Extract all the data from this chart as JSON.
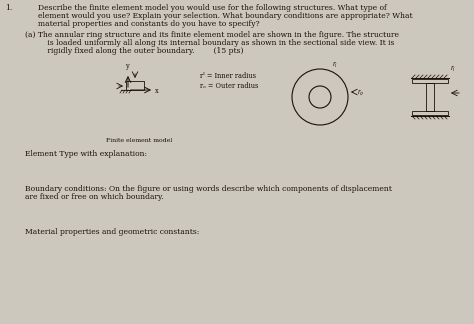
{
  "bg_color": "#ccc8be",
  "title_num": "1.",
  "main_text_line1": "Describe the finite element model you would use for the following structures. What type of",
  "main_text_line2": "element would you use? Explain your selection. What boundary conditions are appropriate? What",
  "main_text_line3": "material properties and constants do you have to specify?",
  "part_a_line1": "(a) The annular ring structure and its finite element model are shown in the figure. The structure",
  "part_a_line2": "    is loaded uniformly all along its internal boundary as shown in the sectional side view. It is",
  "part_a_line3": "    rigidly fixed along the outer boundary.        (15 pts)",
  "legend_ri": "rᴵ = Inner radius",
  "legend_ro": "rₒ = Outer radius",
  "finite_label": "Finite element model",
  "element_type_label": "Element Type with explanation:",
  "boundary_label_line1": "Boundary conditions: On the figure or using words describe which components of displacement",
  "boundary_label_line2": "are fixed or free on which boundary.",
  "material_label": "Material properties and geometric constants:",
  "text_color": "#1a1008",
  "text_fontsize": 5.5,
  "small_fontsize": 4.8
}
